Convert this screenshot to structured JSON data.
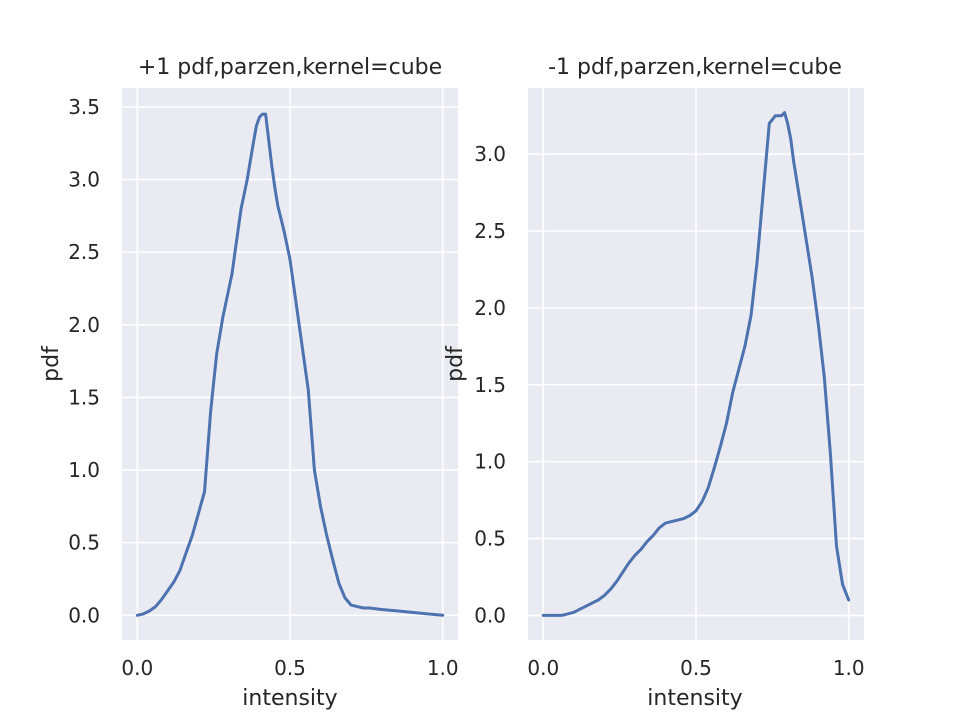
{
  "colors": {
    "line": "#4c72b0",
    "background": "#eaeaf2",
    "grid": "#ffffff"
  },
  "chart_data": [
    {
      "type": "line",
      "title": "+1 pdf,parzen,kernel=cube",
      "xlabel": "intensity",
      "ylabel": "pdf",
      "xlim": [
        -0.05,
        1.05
      ],
      "ylim": [
        -0.17,
        3.63
      ],
      "xticks": [
        0.0,
        0.5,
        1.0
      ],
      "xtick_labels": [
        "0.0",
        "0.5",
        "1.0"
      ],
      "yticks": [
        0.0,
        0.5,
        1.0,
        1.5,
        2.0,
        2.5,
        3.0,
        3.5
      ],
      "ytick_labels": [
        "0.0",
        "0.5",
        "1.0",
        "1.5",
        "2.0",
        "2.5",
        "3.0",
        "3.5"
      ],
      "grid": true,
      "series": [
        {
          "x": [
            0,
            0.02,
            0.04,
            0.06,
            0.08,
            0.1,
            0.12,
            0.14,
            0.16,
            0.18,
            0.2,
            0.22,
            0.24,
            0.25,
            0.26,
            0.28,
            0.3,
            0.31,
            0.32,
            0.34,
            0.35,
            0.36,
            0.38,
            0.39,
            0.4,
            0.41,
            0.42,
            0.44,
            0.45,
            0.46,
            0.48,
            0.5,
            0.52,
            0.54,
            0.56,
            0.58,
            0.6,
            0.62,
            0.64,
            0.66,
            0.68,
            0.7,
            0.72,
            0.74,
            0.76,
            0.8,
            0.85,
            0.9,
            0.95,
            1.0
          ],
          "y": [
            0,
            0.01,
            0.03,
            0.06,
            0.11,
            0.17,
            0.23,
            0.31,
            0.43,
            0.55,
            0.7,
            0.85,
            1.4,
            1.6,
            1.8,
            2.05,
            2.25,
            2.35,
            2.5,
            2.8,
            2.9,
            3.0,
            3.25,
            3.37,
            3.43,
            3.45,
            3.45,
            3.1,
            2.95,
            2.82,
            2.65,
            2.45,
            2.15,
            1.85,
            1.55,
            1.0,
            0.75,
            0.55,
            0.38,
            0.22,
            0.12,
            0.07,
            0.06,
            0.05,
            0.05,
            0.04,
            0.03,
            0.02,
            0.01,
            0.0
          ]
        }
      ]
    },
    {
      "type": "line",
      "title": "-1 pdf,parzen,kernel=cube",
      "xlabel": "intensity",
      "ylabel": "pdf",
      "xlim": [
        -0.05,
        1.05
      ],
      "ylim": [
        -0.16,
        3.43
      ],
      "xticks": [
        0.0,
        0.5,
        1.0
      ],
      "xtick_labels": [
        "0.0",
        "0.5",
        "1.0"
      ],
      "yticks": [
        0.0,
        0.5,
        1.0,
        1.5,
        2.0,
        2.5,
        3.0
      ],
      "ytick_labels": [
        "0.0",
        "0.5",
        "1.0",
        "1.5",
        "2.0",
        "2.5",
        "3.0"
      ],
      "grid": true,
      "series": [
        {
          "x": [
            0,
            0.02,
            0.04,
            0.06,
            0.08,
            0.1,
            0.12,
            0.14,
            0.16,
            0.18,
            0.2,
            0.22,
            0.24,
            0.26,
            0.28,
            0.3,
            0.32,
            0.34,
            0.36,
            0.38,
            0.4,
            0.42,
            0.44,
            0.46,
            0.48,
            0.5,
            0.52,
            0.54,
            0.56,
            0.58,
            0.6,
            0.62,
            0.64,
            0.66,
            0.68,
            0.7,
            0.72,
            0.74,
            0.76,
            0.78,
            0.79,
            0.8,
            0.81,
            0.82,
            0.84,
            0.86,
            0.88,
            0.9,
            0.92,
            0.94,
            0.96,
            0.98,
            1.0
          ],
          "y": [
            0,
            0,
            0,
            0,
            0.01,
            0.02,
            0.04,
            0.06,
            0.08,
            0.1,
            0.13,
            0.17,
            0.22,
            0.28,
            0.34,
            0.39,
            0.43,
            0.48,
            0.52,
            0.57,
            0.6,
            0.61,
            0.62,
            0.63,
            0.65,
            0.68,
            0.74,
            0.83,
            0.96,
            1.1,
            1.25,
            1.45,
            1.6,
            1.75,
            1.95,
            2.3,
            2.75,
            3.2,
            3.25,
            3.25,
            3.27,
            3.2,
            3.1,
            2.95,
            2.7,
            2.45,
            2.2,
            1.9,
            1.55,
            1.05,
            0.45,
            0.2,
            0.1
          ]
        }
      ]
    }
  ]
}
